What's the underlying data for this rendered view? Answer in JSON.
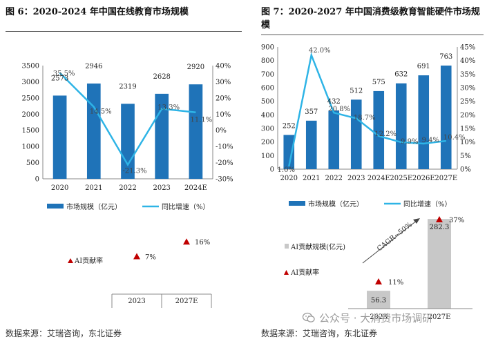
{
  "left_title": "图 6：2020-2024 年中国在线教育市场规模",
  "right_title": "图 7：2020-2027 年中国消费级教育智能硬件市场规模",
  "footer_left": "数据来源：艾瑞咨询，东北证券",
  "footer_right": "数据来源：艾瑞咨询，东北证券",
  "watermark": "公众号 · 大消费市场调研",
  "colors": {
    "bar": "#1f73b8",
    "line": "#2eb4e6",
    "grey_bar": "#c8c8c8",
    "marker": "#c00000"
  },
  "chart_data": [
    {
      "type": "bar",
      "title": "图 6：2020-2024 年中国在线教育市场规模",
      "categories": [
        "2020",
        "2021",
        "2022",
        "2023",
        "2024E"
      ],
      "series": [
        {
          "name": "市场规模（亿元）",
          "axis": "left",
          "kind": "bar",
          "values": [
            2573,
            2946,
            2319,
            2628,
            2920
          ],
          "labels": [
            "2573",
            "2946",
            "2319",
            "2628",
            "2920"
          ]
        },
        {
          "name": "同比增速（%）",
          "axis": "right",
          "kind": "line",
          "values": [
            35.5,
            14.5,
            -21.3,
            13.3,
            11.1
          ],
          "labels": [
            "35.5%",
            "14.5%",
            "-21.3%",
            "13.3%",
            "11.1%"
          ]
        }
      ],
      "y_left": {
        "min": 0,
        "max": 3500,
        "ticks": [
          "0",
          "500",
          "1000",
          "1500",
          "2000",
          "2500",
          "3000",
          "3500"
        ]
      },
      "y_right": {
        "min": -30,
        "max": 40,
        "ticks": [
          "-30%",
          "-20%",
          "-10%",
          "0%",
          "10%",
          "20%",
          "30%",
          "40%"
        ]
      },
      "legend": "bottom",
      "grid": false
    },
    {
      "type": "bar",
      "title": "图 7：2020-2027 年中国消费级教育智能硬件市场规模",
      "categories": [
        "2020",
        "2021",
        "2022",
        "2023",
        "2024E",
        "2025E",
        "2026E",
        "2027E"
      ],
      "series": [
        {
          "name": "市场规模（亿元）",
          "axis": "left",
          "kind": "bar",
          "values": [
            252,
            357,
            432,
            512,
            575,
            632,
            691,
            763
          ],
          "labels": [
            "252",
            "357",
            "432",
            "512",
            "575",
            "632",
            "691",
            "763"
          ]
        },
        {
          "name": "同比增速（%）",
          "axis": "right",
          "kind": "line",
          "values": [
            1.0,
            42.0,
            20.8,
            18.7,
            12.2,
            9.9,
            9.4,
            10.4
          ],
          "labels": [
            "1.0%",
            "42.0%",
            "20.8%",
            "18.7%",
            "12.2%",
            "9.9%",
            "9.4%",
            "10.4%"
          ]
        }
      ],
      "y_left": {
        "min": 0,
        "max": 900,
        "ticks": [
          "0",
          "100",
          "200",
          "300",
          "400",
          "500",
          "600",
          "700",
          "800",
          "900"
        ]
      },
      "y_right": {
        "min": 0,
        "max": 45,
        "ticks": [
          "0%",
          "5%",
          "10%",
          "15%",
          "20%",
          "25%",
          "30%",
          "35%",
          "40%",
          "45%"
        ]
      },
      "legend": "bottom",
      "grid": false
    },
    {
      "type": "scatter",
      "categories": [
        "2023",
        "2027E"
      ],
      "series": [
        {
          "name": "AI贡献率",
          "values": [
            7,
            16
          ],
          "labels": [
            "7%",
            "16%"
          ]
        }
      ],
      "legend": "left"
    },
    {
      "type": "bar",
      "categories": [
        "2023",
        "2027E"
      ],
      "series": [
        {
          "name": "AI贡献规模(亿元)",
          "values": [
            56.3,
            282.3
          ],
          "labels": [
            "56.3",
            "282.3"
          ]
        },
        {
          "name": "AI贡献率",
          "values": [
            11,
            37
          ],
          "labels": [
            "11%",
            "37%"
          ]
        }
      ],
      "annotation": "CAGR~50%",
      "legend": "left"
    }
  ]
}
